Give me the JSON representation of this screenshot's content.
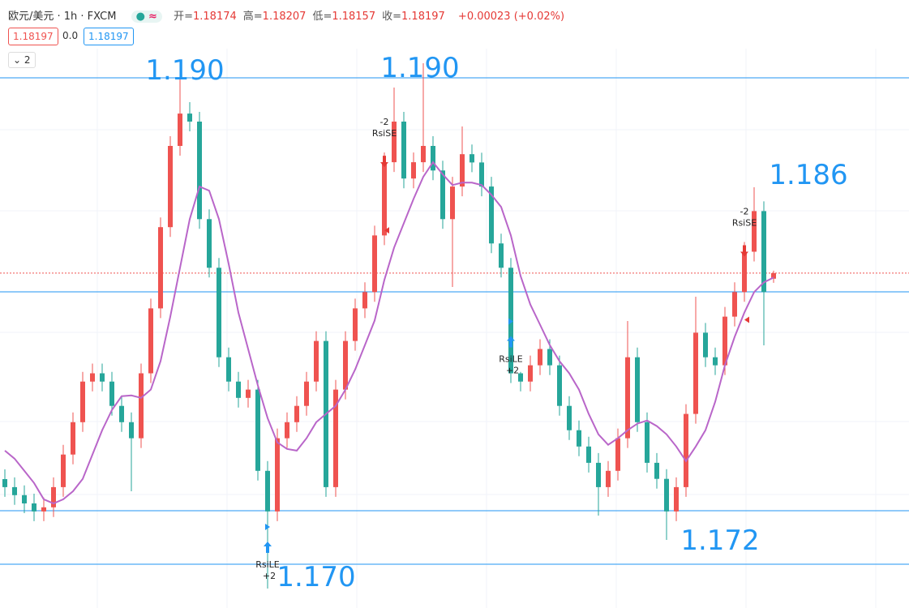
{
  "header": {
    "symbol": "欧元/美元 · 1h · FXCM",
    "ohlc": [
      {
        "label": "开=",
        "value": "1.18174"
      },
      {
        "label": "高=",
        "value": "1.18207"
      },
      {
        "label": "低=",
        "value": "1.18157"
      },
      {
        "label": "收=",
        "value": "1.18197"
      }
    ],
    "change": "+0.00023 (+0.02%)",
    "price_boxes": [
      "1.18197",
      "0.0",
      "1.18197"
    ],
    "indicator_count": "2"
  },
  "chart_data": {
    "type": "candlestick",
    "up_color": "#ef5350",
    "down_color": "#26a69a",
    "ma_color": "#b966c9",
    "line_color": "#2196f3",
    "ylim": [
      1.1682,
      1.1932
    ],
    "open": [
      1.1735,
      1.17317,
      1.17284,
      1.1725,
      1.17217,
      1.17234,
      1.17317,
      1.17451,
      1.17584,
      1.17751,
      1.17785,
      1.17751,
      1.17651,
      1.17584,
      1.17518,
      1.17785,
      1.18052,
      1.18386,
      1.1872,
      1.18853,
      1.1882,
      1.18419,
      1.18219,
      1.17851,
      1.17751,
      1.17684,
      1.17718,
      1.17384,
      1.17217,
      1.17518,
      1.17584,
      1.17651,
      1.17751,
      1.17918,
      1.17317,
      1.17718,
      1.17918,
      1.18052,
      1.18119,
      1.18352,
      1.18653,
      1.1882,
      1.18586,
      1.18653,
      1.1872,
      1.18619,
      1.18419,
      1.18553,
      1.18686,
      1.18652,
      1.18553,
      1.18319,
      1.18219,
      1.17785,
      1.17751,
      1.17818,
      1.17885,
      1.17818,
      1.17651,
      1.17551,
      1.17484,
      1.17417,
      1.17317,
      1.17384,
      1.17518,
      1.17851,
      1.17584,
      1.17417,
      1.17351,
      1.17217,
      1.17317,
      1.17618,
      1.17952,
      1.17851,
      1.17818,
      1.18018,
      1.18119,
      1.18285,
      1.18452,
      1.18174
    ],
    "high": [
      1.1739,
      1.17357,
      1.17324,
      1.1729,
      1.17274,
      1.17357,
      1.17491,
      1.17624,
      1.17791,
      1.17825,
      1.17825,
      1.17791,
      1.17691,
      1.17624,
      1.17825,
      1.18092,
      1.18426,
      1.1876,
      1.19,
      1.189,
      1.1886,
      1.18459,
      1.18259,
      1.17891,
      1.17791,
      1.17758,
      1.17758,
      1.17424,
      1.17558,
      1.17624,
      1.17691,
      1.17791,
      1.17958,
      1.17958,
      1.17758,
      1.17958,
      1.18092,
      1.18159,
      1.18392,
      1.18693,
      1.1896,
      1.1886,
      1.18693,
      1.1906,
      1.1876,
      1.18659,
      1.18593,
      1.188,
      1.18726,
      1.18692,
      1.18593,
      1.18359,
      1.18259,
      1.17791,
      1.17858,
      1.17925,
      1.17925,
      1.17858,
      1.17691,
      1.17591,
      1.17524,
      1.17457,
      1.17424,
      1.17558,
      1.18,
      1.17891,
      1.17624,
      1.17457,
      1.17391,
      1.17357,
      1.17658,
      1.181,
      1.17992,
      1.17891,
      1.18058,
      1.18159,
      1.18325,
      1.1855,
      1.18492,
      1.18207
    ],
    "low": [
      1.17277,
      1.17244,
      1.1721,
      1.17177,
      1.17177,
      1.17194,
      1.17277,
      1.17411,
      1.17544,
      1.17711,
      1.17711,
      1.17611,
      1.17544,
      1.173,
      1.17478,
      1.17745,
      1.18012,
      1.18346,
      1.1868,
      1.1878,
      1.18379,
      1.18179,
      1.17811,
      1.17711,
      1.17644,
      1.17644,
      1.17344,
      1.169,
      1.17177,
      1.17478,
      1.17544,
      1.17611,
      1.17711,
      1.17277,
      1.17277,
      1.17678,
      1.17878,
      1.18012,
      1.18079,
      1.18312,
      1.18613,
      1.18546,
      1.18546,
      1.18613,
      1.18579,
      1.18379,
      1.1814,
      1.18513,
      1.18612,
      1.18513,
      1.18279,
      1.18179,
      1.17745,
      1.17711,
      1.17711,
      1.17778,
      1.17778,
      1.17611,
      1.17511,
      1.17444,
      1.17377,
      1.172,
      1.17277,
      1.17344,
      1.17478,
      1.17544,
      1.17377,
      1.17311,
      1.171,
      1.17177,
      1.17277,
      1.17578,
      1.17811,
      1.17778,
      1.17778,
      1.17978,
      1.18079,
      1.18245,
      1.179,
      1.18157
    ],
    "close": [
      1.17317,
      1.17284,
      1.1725,
      1.17217,
      1.17234,
      1.17317,
      1.17451,
      1.17584,
      1.17751,
      1.17785,
      1.17751,
      1.17651,
      1.17584,
      1.17518,
      1.17785,
      1.18052,
      1.18386,
      1.1872,
      1.18853,
      1.1882,
      1.18419,
      1.18219,
      1.17851,
      1.17751,
      1.17684,
      1.17718,
      1.17384,
      1.17217,
      1.17518,
      1.17584,
      1.17651,
      1.17751,
      1.17918,
      1.17317,
      1.17718,
      1.17918,
      1.18052,
      1.18119,
      1.18352,
      1.18653,
      1.1882,
      1.18586,
      1.18653,
      1.1872,
      1.18619,
      1.18419,
      1.18553,
      1.18686,
      1.18652,
      1.18553,
      1.18319,
      1.18219,
      1.17785,
      1.17751,
      1.17818,
      1.17885,
      1.17818,
      1.17651,
      1.17551,
      1.17484,
      1.17417,
      1.17317,
      1.17384,
      1.17518,
      1.17851,
      1.17584,
      1.17417,
      1.17351,
      1.17217,
      1.17317,
      1.17618,
      1.17952,
      1.17851,
      1.17818,
      1.18018,
      1.18119,
      1.18285,
      1.18452,
      1.18119,
      1.18197
    ],
    "ma": [
      1.17467,
      1.17434,
      1.17384,
      1.17334,
      1.17267,
      1.1725,
      1.17267,
      1.173,
      1.17351,
      1.17451,
      1.17551,
      1.17634,
      1.17691,
      1.17694,
      1.17684,
      1.17718,
      1.17835,
      1.18018,
      1.18219,
      1.18419,
      1.18553,
      1.18536,
      1.18419,
      1.18235,
      1.18035,
      1.17885,
      1.17735,
      1.17601,
      1.17501,
      1.17474,
      1.17467,
      1.17518,
      1.17584,
      1.17618,
      1.17651,
      1.17718,
      1.17801,
      1.17901,
      1.18002,
      1.18169,
      1.18302,
      1.18402,
      1.18502,
      1.18593,
      1.18653,
      1.18603,
      1.18559,
      1.18569,
      1.18569,
      1.18559,
      1.18519,
      1.18469,
      1.18352,
      1.18185,
      1.18068,
      1.17985,
      1.17901,
      1.17835,
      1.17785,
      1.17718,
      1.17618,
      1.17534,
      1.17491,
      1.17518,
      1.17551,
      1.17578,
      1.17591,
      1.17568,
      1.17534,
      1.17484,
      1.17424,
      1.17484,
      1.17551,
      1.17668,
      1.17818,
      1.17935,
      1.18035,
      1.18119,
      1.18159,
      1.18179
    ],
    "hlines": [
      1.19,
      1.1812,
      1.1722,
      1.17
    ],
    "annotations": [
      "1.190",
      "1.190",
      "1.186",
      "1.172",
      "1.170"
    ],
    "signals": [
      {
        "label": "RsiLE",
        "qty": "+2"
      },
      {
        "label": "RsiSE",
        "qty": "-2"
      },
      {
        "label": "RsiLE",
        "qty": "+2"
      },
      {
        "label": "RsiSE",
        "qty": "-2"
      }
    ]
  }
}
